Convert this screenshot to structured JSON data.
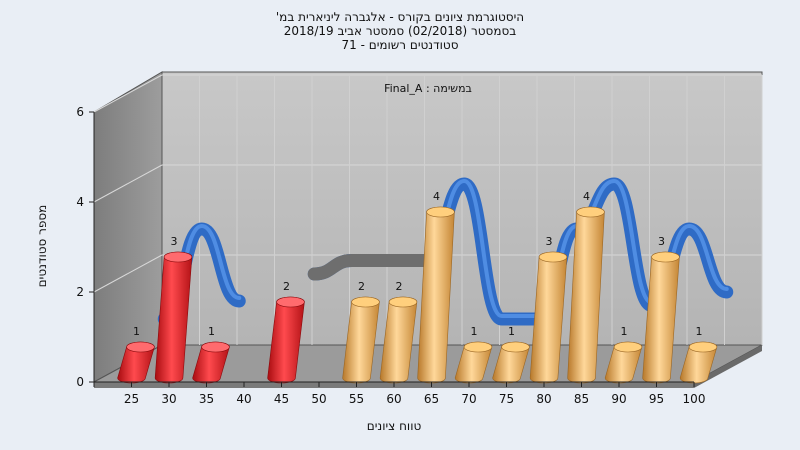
{
  "chart_data": {
    "type": "bar",
    "title_lines": [
      "היסטוגרמת ציונים בקורס - אלגברה ליניארית במ'",
      "בסמסטר  (02/2018)  סמסטר אביב 2018/19",
      "סטודנטים רשומים - 71"
    ],
    "task_label": "במשימה : Final_A",
    "xlabel": "טווח ציונים",
    "ylabel": "מספר סטודנטים",
    "ylim": [
      0,
      6
    ],
    "yticks": [
      "0",
      "2",
      "4",
      "6"
    ],
    "categories": [
      "25",
      "30",
      "35",
      "40",
      "45",
      "50",
      "55",
      "60",
      "65",
      "70",
      "75",
      "80",
      "85",
      "90",
      "95",
      "100"
    ],
    "values": [
      1,
      3,
      1,
      null,
      2,
      null,
      2,
      2,
      4,
      1,
      1,
      3,
      4,
      1,
      3,
      1
    ],
    "value_labels": [
      "1",
      "3",
      "1",
      "",
      "2",
      "",
      "2",
      "2",
      "4",
      "1",
      "1",
      "3",
      "4",
      "1",
      "3",
      "1"
    ],
    "bar_colors": [
      "red",
      "red",
      "red",
      "",
      "red",
      "",
      "orange",
      "orange",
      "orange",
      "orange",
      "orange",
      "orange",
      "orange",
      "orange",
      "orange",
      "orange"
    ],
    "distribution_ribbon": [
      1,
      3,
      1.4,
      null,
      2,
      2.3,
      2.3,
      2.3,
      4,
      1,
      1,
      3,
      4,
      1.3,
      3,
      1.6
    ]
  },
  "colors": {
    "background": "#e9eef5",
    "plot_back": "#bfbfbf",
    "left_wall": "#8c8c8c",
    "floor": "#9a9a9a",
    "red_bar": "#e8262b",
    "orange_bar": "#e3a64a",
    "ribbon": "#2f6bc5",
    "ribbon_gray": "#6e6e6e"
  }
}
